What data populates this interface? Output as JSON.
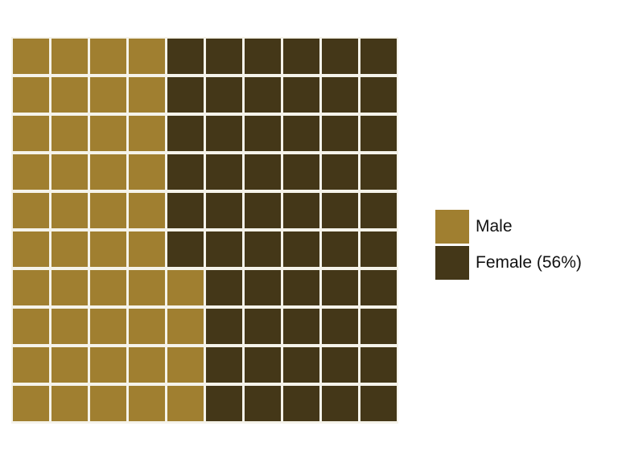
{
  "chart_data": {
    "type": "waffle",
    "grid": {
      "rows": 10,
      "cols": 10
    },
    "fill_order": "column-major, bottom-to-top, left-to-right",
    "series": [
      {
        "name": "Male",
        "label": "Male",
        "count": 44,
        "percent": 44,
        "color": "#a07f30"
      },
      {
        "name": "Female",
        "label": "Female (56%)",
        "count": 56,
        "percent": 56,
        "color": "#443718"
      }
    ],
    "legend_position": "right"
  }
}
